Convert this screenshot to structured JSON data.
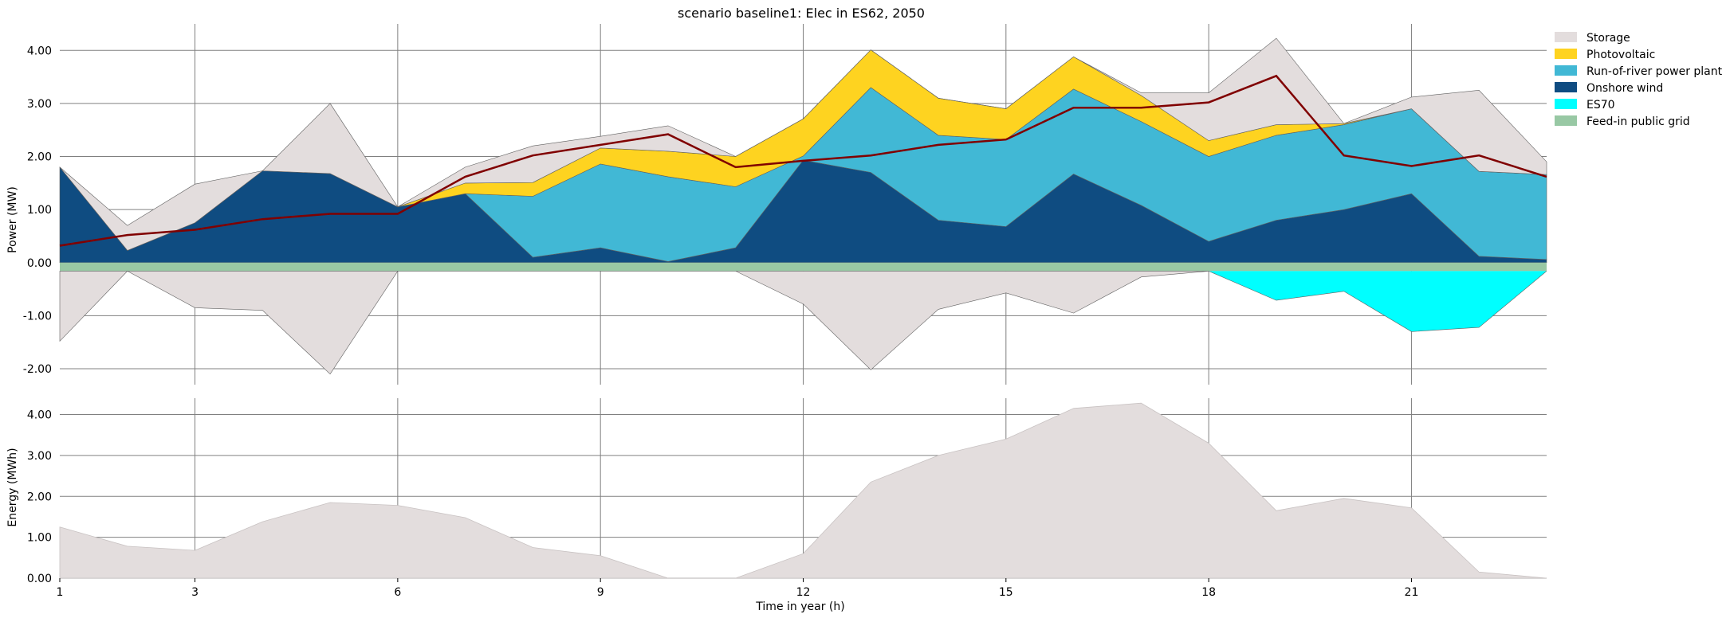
{
  "chart_data": [
    {
      "type": "area",
      "title": "scenario baseline1: Elec in ES62, 2050",
      "ylabel": "Power (MW)",
      "ylim": [
        -2.3,
        4.5
      ],
      "yticks": [
        -2,
        -1,
        0,
        1,
        2,
        3,
        4
      ],
      "ytick_labels": [
        "-2.00",
        "-1.00",
        "0.00",
        "1.00",
        "2.00",
        "3.00",
        "4.00"
      ],
      "x": [
        1,
        2,
        3,
        4,
        5,
        6,
        7,
        8,
        9,
        10,
        11,
        12,
        13,
        14,
        15,
        16,
        17,
        18,
        19,
        20,
        21,
        22,
        23
      ],
      "xlim": [
        1,
        23
      ],
      "xticks": [
        3,
        6,
        9,
        12,
        15,
        18,
        21
      ],
      "grid": true,
      "legend": "right",
      "series_order_top": [
        "Onshore wind",
        "Run-of-river power plant",
        "Photovoltaic",
        "Storage"
      ],
      "series": [
        {
          "name": "Storage",
          "color": "#e3dddd",
          "positive": [
            1.8,
            0.7,
            1.48,
            1.7,
            3.0,
            1.05,
            1.8,
            2.2,
            2.38,
            2.58,
            1.98,
            2.7,
            4.0,
            3.1,
            2.9,
            3.88,
            3.2,
            3.2,
            4.23,
            2.62,
            3.12,
            3.25,
            1.9
          ],
          "negative": [
            -1.48,
            -0.16,
            -0.85,
            -0.9,
            -2.1,
            -0.16,
            -0.16,
            -0.16,
            -0.16,
            -0.16,
            -0.16,
            -0.78,
            -2.02,
            -0.88,
            -0.57,
            -0.95,
            -0.27,
            -0.16,
            -0.16,
            -0.5,
            -0.16,
            -0.16,
            -0.16
          ]
        },
        {
          "name": "Photovoltaic",
          "color": "#fed320",
          "values": [
            0,
            0,
            0,
            0,
            0,
            0,
            0.2,
            0.26,
            0.3,
            0.48,
            0.57,
            0.7,
            0.71,
            0.7,
            0.58,
            0.61,
            0.49,
            0.3,
            0.2,
            0.02,
            0,
            0,
            0
          ]
        },
        {
          "name": "Run-of-river power plant",
          "color": "#41b8d5",
          "values": [
            0,
            0,
            0,
            0,
            0,
            0,
            0,
            1.15,
            1.58,
            1.6,
            1.15,
            0.08,
            1.6,
            1.6,
            1.64,
            1.6,
            1.58,
            1.6,
            1.6,
            1.6,
            1.6,
            1.6,
            1.6
          ]
        },
        {
          "name": "Onshore wind",
          "color": "#0f4c81",
          "values": [
            1.8,
            0.23,
            0.75,
            1.73,
            1.68,
            1.05,
            1.3,
            0.1,
            0.28,
            0.02,
            0.28,
            1.93,
            1.7,
            0.8,
            0.68,
            1.67,
            1.08,
            0.4,
            0.8,
            1.0,
            1.3,
            0.12,
            0.06
          ]
        },
        {
          "name": "ES70",
          "color": "#00ffff",
          "values": [
            0,
            0,
            0,
            0,
            0,
            0,
            0,
            0,
            0,
            0,
            0,
            0,
            0,
            0,
            0,
            0,
            0,
            0,
            -0.55,
            -0.38,
            -1.14,
            -1.06,
            0
          ]
        },
        {
          "name": "Feed-in public grid",
          "color": "#98c8a4",
          "values": [
            -0.16,
            -0.16,
            -0.16,
            -0.16,
            -0.16,
            -0.16,
            -0.16,
            -0.16,
            -0.16,
            -0.16,
            -0.16,
            -0.16,
            -0.16,
            -0.16,
            -0.16,
            -0.16,
            -0.16,
            -0.16,
            -0.16,
            -0.16,
            -0.16,
            -0.16,
            -0.16
          ]
        }
      ],
      "demand_line": {
        "color": "#800000",
        "values": [
          0.32,
          0.52,
          0.62,
          0.82,
          0.92,
          0.92,
          1.62,
          2.02,
          2.22,
          2.42,
          1.8,
          1.92,
          2.02,
          2.22,
          2.32,
          2.92,
          2.92,
          3.02,
          3.52,
          2.02,
          1.82,
          2.02,
          1.62
        ]
      }
    },
    {
      "type": "area",
      "ylabel": "Energy (MWh)",
      "xlabel": "Time in year (h)",
      "ylim": [
        0,
        4.4
      ],
      "yticks": [
        0,
        1,
        2,
        3,
        4
      ],
      "ytick_labels": [
        "0.00",
        "1.00",
        "2.00",
        "3.00",
        "4.00"
      ],
      "x": [
        1,
        2,
        3,
        4,
        5,
        6,
        7,
        8,
        9,
        10,
        11,
        12,
        13,
        14,
        15,
        16,
        17,
        18,
        19,
        20,
        21,
        22,
        23
      ],
      "xlim": [
        1,
        23
      ],
      "xticks": [
        1,
        3,
        6,
        9,
        12,
        15,
        18,
        21
      ],
      "xtick_labels": [
        "1",
        "3",
        "6",
        "9",
        "12",
        "15",
        "18",
        "21"
      ],
      "grid": true,
      "series": [
        {
          "name": "Storage",
          "color": "#e3dddd",
          "values": [
            1.25,
            0.78,
            0.68,
            1.38,
            1.85,
            1.78,
            1.48,
            0.75,
            0.55,
            0.0,
            0.0,
            0.6,
            2.35,
            3.0,
            3.4,
            4.15,
            4.28,
            3.3,
            1.65,
            1.95,
            1.72,
            0.15,
            0.0
          ]
        }
      ]
    }
  ]
}
